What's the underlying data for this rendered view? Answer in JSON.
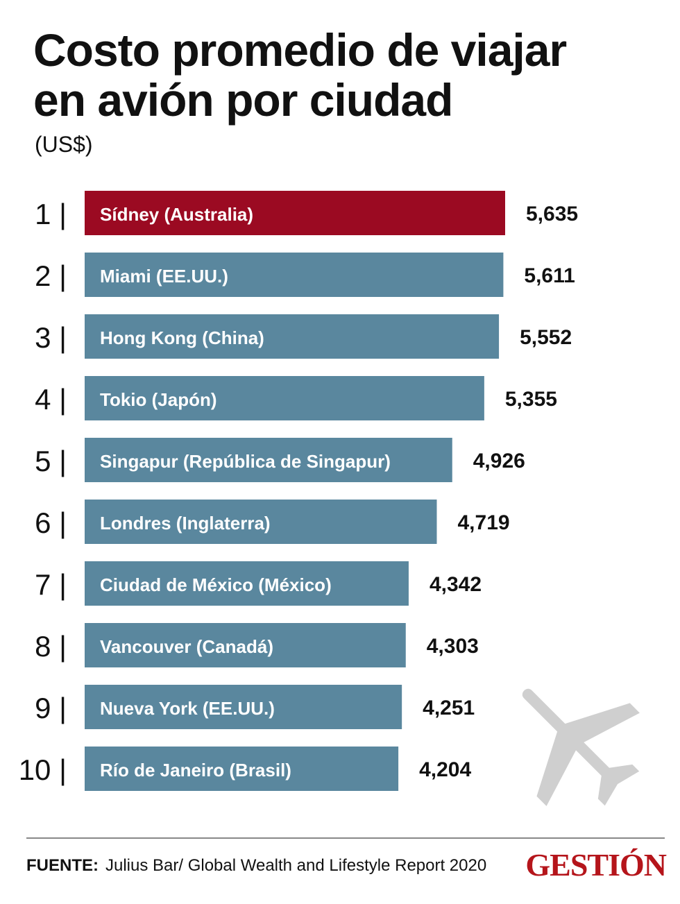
{
  "header": {
    "title_line1": "Costo promedio de viajar",
    "title_line2": "en avión por ciudad",
    "subtitle": "(US$)"
  },
  "chart_data": {
    "type": "bar",
    "orientation": "horizontal",
    "title": "Costo promedio de viajar en avión por ciudad",
    "subtitle": "(US$)",
    "ranks": [
      "1",
      "2",
      "3",
      "4",
      "5",
      "6",
      "7",
      "8",
      "9",
      "10"
    ],
    "categories": [
      "Sídney (Australia)",
      "Miami (EE.UU.)",
      "Hong Kong (China)",
      "Tokio (Japón)",
      "Singapur (República de Singapur)",
      "Londres (Inglaterra)",
      "Ciudad de México (México)",
      "Vancouver (Canadá)",
      "Nueva York (EE.UU.)",
      "Río de Janeiro (Brasil)"
    ],
    "values": [
      5635,
      5611,
      5552,
      5355,
      4926,
      4719,
      4342,
      4303,
      4251,
      4204
    ],
    "value_labels": [
      "5,635",
      "5,611",
      "5,552",
      "5,355",
      "4,926",
      "4,719",
      "4,342",
      "4,303",
      "4,251",
      "4,204"
    ],
    "colors": {
      "highlight": "#9b0a22",
      "default": "#5a879e"
    },
    "highlight_index": 0,
    "grid": false,
    "legend": "none"
  },
  "footer": {
    "source_label": "FUENTE:",
    "source_text": "Julius Bar/ Global Wealth and Lifestyle Report 2020",
    "brand": "GESTIÓN"
  },
  "decoration": {
    "icon": "airplane-icon",
    "icon_color": "#cfcfcf"
  }
}
